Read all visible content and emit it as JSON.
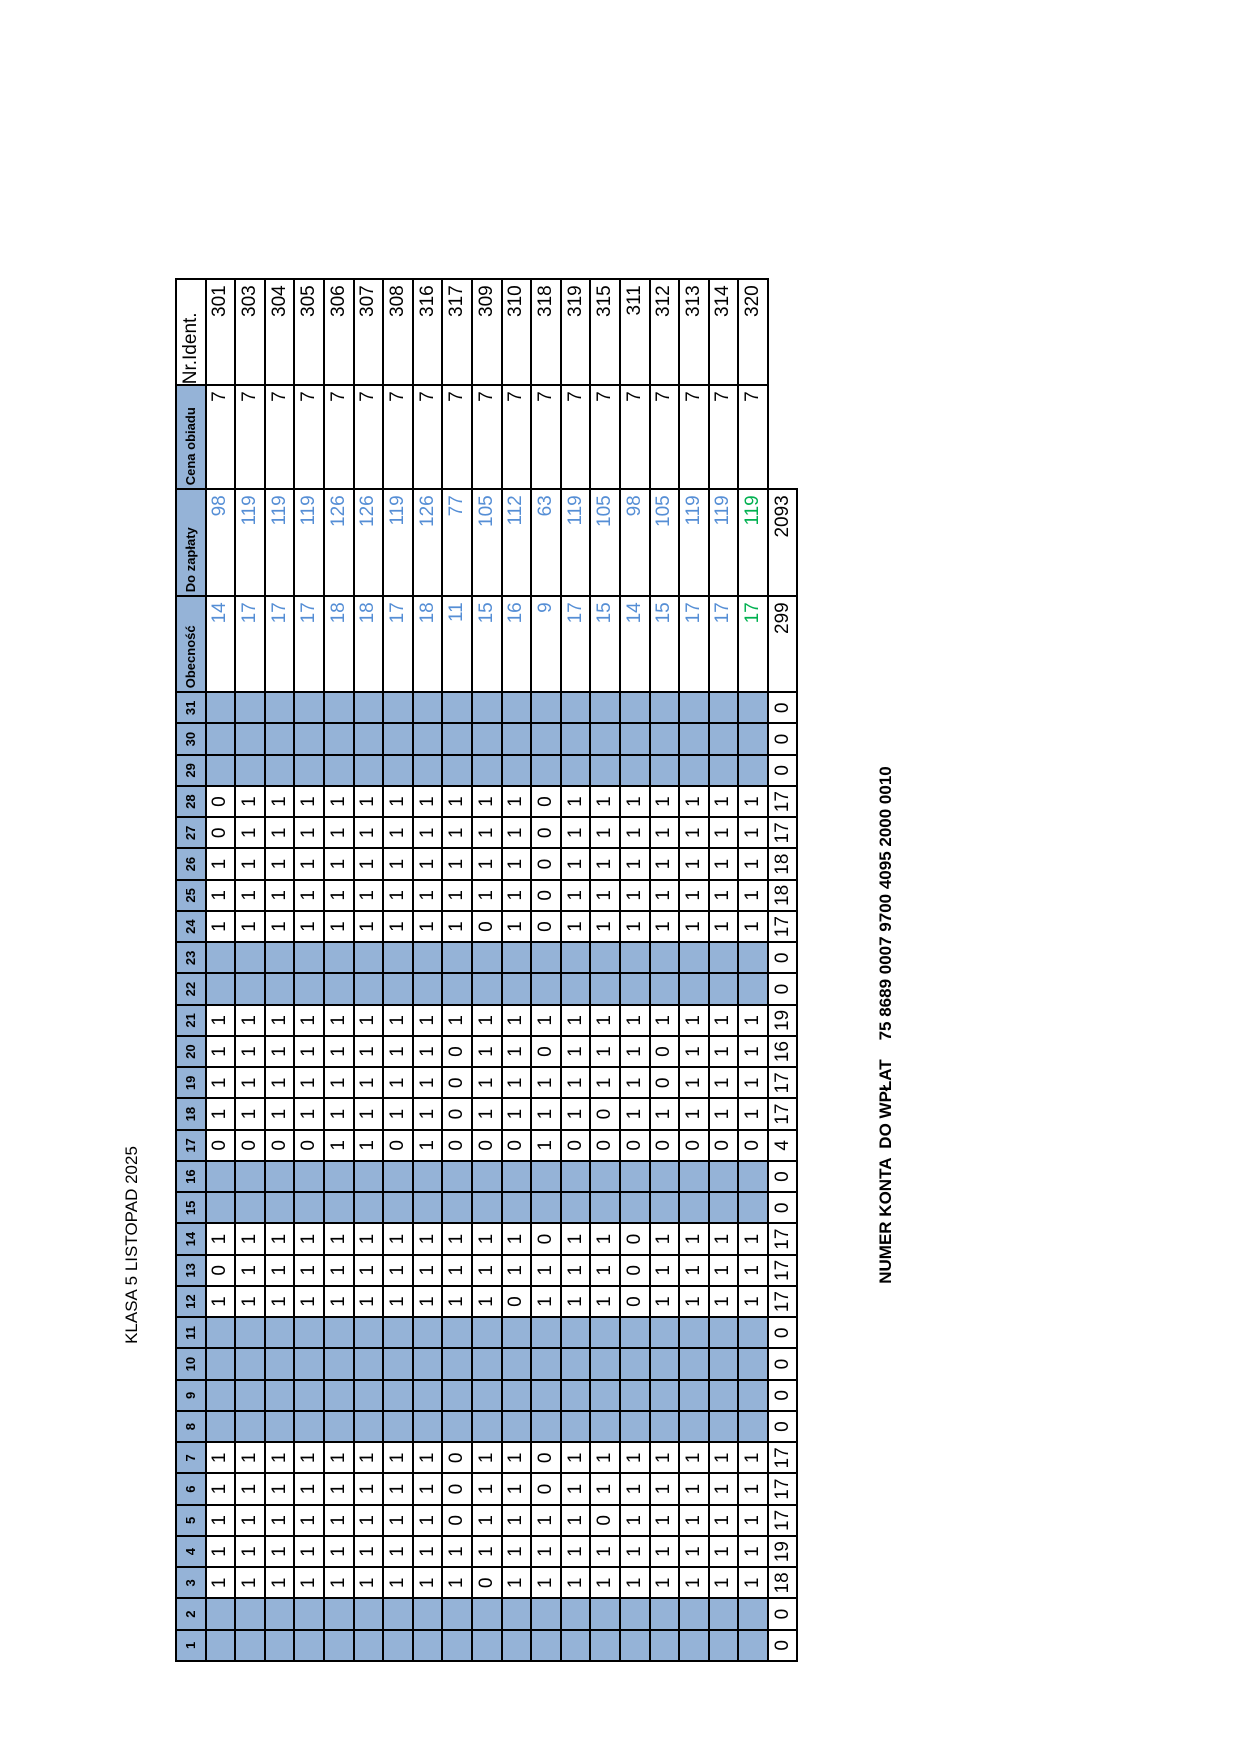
{
  "title": "KLASA 5 LISTOPAD 2025",
  "account": "NUMER KONTA  DO WPŁAT    75 8689 0007 9700 4095 2000 0010",
  "colors": {
    "header_fill": "#95b3d7",
    "value_blue": "#558ed5",
    "value_green": "#00b050"
  },
  "headers": {
    "days": [
      "1",
      "2",
      "3",
      "4",
      "5",
      "6",
      "7",
      "8",
      "9",
      "10",
      "11",
      "12",
      "13",
      "14",
      "15",
      "16",
      "17",
      "18",
      "19",
      "20",
      "21",
      "22",
      "23",
      "24",
      "25",
      "26",
      "27",
      "28",
      "29",
      "30",
      "31"
    ],
    "obecnosc": "Obecność",
    "do_zaplaty": "Do zapłaty",
    "cena_obiadu": "Cena obiadu",
    "nr_ident": "Nr.Ident."
  },
  "days_off": [
    1,
    2,
    8,
    9,
    10,
    11,
    15,
    16,
    22,
    23,
    29,
    30,
    31
  ],
  "students": [
    {
      "nr_ident": "301",
      "cena": "7",
      "obecnosc": "14",
      "do_zaplaty": "98",
      "attendance": [
        null,
        null,
        1,
        1,
        1,
        1,
        1,
        null,
        null,
        null,
        null,
        1,
        0,
        1,
        null,
        null,
        0,
        1,
        1,
        1,
        1,
        null,
        null,
        1,
        1,
        1,
        0,
        0,
        null,
        null,
        null
      ]
    },
    {
      "nr_ident": "303",
      "cena": "7",
      "obecnosc": "17",
      "do_zaplaty": "119",
      "attendance": [
        null,
        null,
        1,
        1,
        1,
        1,
        1,
        null,
        null,
        null,
        null,
        1,
        1,
        1,
        null,
        null,
        0,
        1,
        1,
        1,
        1,
        null,
        null,
        1,
        1,
        1,
        1,
        1,
        null,
        null,
        null
      ]
    },
    {
      "nr_ident": "304",
      "cena": "7",
      "obecnosc": "17",
      "do_zaplaty": "119",
      "attendance": [
        null,
        null,
        1,
        1,
        1,
        1,
        1,
        null,
        null,
        null,
        null,
        1,
        1,
        1,
        null,
        null,
        0,
        1,
        1,
        1,
        1,
        null,
        null,
        1,
        1,
        1,
        1,
        1,
        null,
        null,
        null
      ]
    },
    {
      "nr_ident": "305",
      "cena": "7",
      "obecnosc": "17",
      "do_zaplaty": "119",
      "attendance": [
        null,
        null,
        1,
        1,
        1,
        1,
        1,
        null,
        null,
        null,
        null,
        1,
        1,
        1,
        null,
        null,
        0,
        1,
        1,
        1,
        1,
        null,
        null,
        1,
        1,
        1,
        1,
        1,
        null,
        null,
        null
      ]
    },
    {
      "nr_ident": "306",
      "cena": "7",
      "obecnosc": "18",
      "do_zaplaty": "126",
      "attendance": [
        null,
        null,
        1,
        1,
        1,
        1,
        1,
        null,
        null,
        null,
        null,
        1,
        1,
        1,
        null,
        null,
        1,
        1,
        1,
        1,
        1,
        null,
        null,
        1,
        1,
        1,
        1,
        1,
        null,
        null,
        null
      ]
    },
    {
      "nr_ident": "307",
      "cena": "7",
      "obecnosc": "18",
      "do_zaplaty": "126",
      "attendance": [
        null,
        null,
        1,
        1,
        1,
        1,
        1,
        null,
        null,
        null,
        null,
        1,
        1,
        1,
        null,
        null,
        1,
        1,
        1,
        1,
        1,
        null,
        null,
        1,
        1,
        1,
        1,
        1,
        null,
        null,
        null
      ]
    },
    {
      "nr_ident": "308",
      "cena": "7",
      "obecnosc": "17",
      "do_zaplaty": "119",
      "attendance": [
        null,
        null,
        1,
        1,
        1,
        1,
        1,
        null,
        null,
        null,
        null,
        1,
        1,
        1,
        null,
        null,
        0,
        1,
        1,
        1,
        1,
        null,
        null,
        1,
        1,
        1,
        1,
        1,
        null,
        null,
        null
      ]
    },
    {
      "nr_ident": "316",
      "cena": "7",
      "obecnosc": "18",
      "do_zaplaty": "126",
      "attendance": [
        null,
        null,
        1,
        1,
        1,
        1,
        1,
        null,
        null,
        null,
        null,
        1,
        1,
        1,
        null,
        null,
        1,
        1,
        1,
        1,
        1,
        null,
        null,
        1,
        1,
        1,
        1,
        1,
        null,
        null,
        null
      ]
    },
    {
      "nr_ident": "317",
      "cena": "7",
      "obecnosc": "11",
      "do_zaplaty": "77",
      "attendance": [
        null,
        null,
        1,
        1,
        0,
        0,
        0,
        null,
        null,
        null,
        null,
        1,
        1,
        1,
        null,
        null,
        0,
        0,
        0,
        0,
        1,
        null,
        null,
        1,
        1,
        1,
        1,
        1,
        null,
        null,
        null
      ]
    },
    {
      "nr_ident": "309",
      "cena": "7",
      "obecnosc": "15",
      "do_zaplaty": "105",
      "attendance": [
        null,
        null,
        0,
        1,
        1,
        1,
        1,
        null,
        null,
        null,
        null,
        1,
        1,
        1,
        null,
        null,
        0,
        1,
        1,
        1,
        1,
        null,
        null,
        0,
        1,
        1,
        1,
        1,
        null,
        null,
        null
      ]
    },
    {
      "nr_ident": "310",
      "cena": "7",
      "obecnosc": "16",
      "do_zaplaty": "112",
      "attendance": [
        null,
        null,
        1,
        1,
        1,
        1,
        1,
        null,
        null,
        null,
        null,
        0,
        1,
        1,
        null,
        null,
        0,
        1,
        1,
        1,
        1,
        null,
        null,
        1,
        1,
        1,
        1,
        1,
        null,
        null,
        null
      ]
    },
    {
      "nr_ident": "318",
      "cena": "7",
      "obecnosc": "9",
      "do_zaplaty": "63",
      "attendance": [
        null,
        null,
        1,
        1,
        1,
        0,
        0,
        null,
        null,
        null,
        null,
        1,
        1,
        0,
        null,
        null,
        1,
        1,
        1,
        0,
        1,
        null,
        null,
        0,
        0,
        0,
        0,
        0,
        null,
        null,
        null
      ]
    },
    {
      "nr_ident": "319",
      "cena": "7",
      "obecnosc": "17",
      "do_zaplaty": "119",
      "attendance": [
        null,
        null,
        1,
        1,
        1,
        1,
        1,
        null,
        null,
        null,
        null,
        1,
        1,
        1,
        null,
        null,
        0,
        1,
        1,
        1,
        1,
        null,
        null,
        1,
        1,
        1,
        1,
        1,
        null,
        null,
        null
      ]
    },
    {
      "nr_ident": "315",
      "cena": "7",
      "obecnosc": "15",
      "do_zaplaty": "105",
      "attendance": [
        null,
        null,
        1,
        1,
        0,
        1,
        1,
        null,
        null,
        null,
        null,
        1,
        1,
        1,
        null,
        null,
        0,
        0,
        1,
        1,
        1,
        null,
        null,
        1,
        1,
        1,
        1,
        1,
        null,
        null,
        null
      ]
    },
    {
      "nr_ident": "311",
      "cena": "7",
      "obecnosc": "14",
      "do_zaplaty": "98",
      "attendance": [
        null,
        null,
        1,
        1,
        1,
        1,
        1,
        null,
        null,
        null,
        null,
        0,
        0,
        0,
        null,
        null,
        0,
        1,
        1,
        1,
        1,
        null,
        null,
        1,
        1,
        1,
        1,
        1,
        null,
        null,
        null
      ]
    },
    {
      "nr_ident": "312",
      "cena": "7",
      "obecnosc": "15",
      "do_zaplaty": "105",
      "attendance": [
        null,
        null,
        1,
        1,
        1,
        1,
        1,
        null,
        null,
        null,
        null,
        1,
        1,
        1,
        null,
        null,
        0,
        1,
        0,
        0,
        1,
        null,
        null,
        1,
        1,
        1,
        1,
        1,
        null,
        null,
        null
      ]
    },
    {
      "nr_ident": "313",
      "cena": "7",
      "obecnosc": "17",
      "do_zaplaty": "119",
      "attendance": [
        null,
        null,
        1,
        1,
        1,
        1,
        1,
        null,
        null,
        null,
        null,
        1,
        1,
        1,
        null,
        null,
        0,
        1,
        1,
        1,
        1,
        null,
        null,
        1,
        1,
        1,
        1,
        1,
        null,
        null,
        null
      ]
    },
    {
      "nr_ident": "314",
      "cena": "7",
      "obecnosc": "17",
      "do_zaplaty": "119",
      "attendance": [
        null,
        null,
        1,
        1,
        1,
        1,
        1,
        null,
        null,
        null,
        null,
        1,
        1,
        1,
        null,
        null,
        0,
        1,
        1,
        1,
        1,
        null,
        null,
        1,
        1,
        1,
        1,
        1,
        null,
        null,
        null
      ]
    },
    {
      "nr_ident": "320",
      "cena": "7",
      "obecnosc": "17",
      "do_zaplaty": "119",
      "highlight": "green",
      "attendance": [
        null,
        null,
        1,
        1,
        1,
        1,
        1,
        null,
        null,
        null,
        null,
        1,
        1,
        1,
        null,
        null,
        0,
        1,
        1,
        1,
        1,
        null,
        null,
        1,
        1,
        1,
        1,
        1,
        null,
        null,
        null
      ]
    }
  ],
  "totals": {
    "days": [
      "0",
      "0",
      "18",
      "19",
      "17",
      "17",
      "17",
      "0",
      "0",
      "0",
      "0",
      "17",
      "17",
      "17",
      "0",
      "0",
      "4",
      "17",
      "17",
      "16",
      "19",
      "0",
      "0",
      "17",
      "18",
      "18",
      "17",
      "17",
      "0",
      "0",
      "0"
    ],
    "obecnosc": "299",
    "do_zaplaty": "2093"
  }
}
